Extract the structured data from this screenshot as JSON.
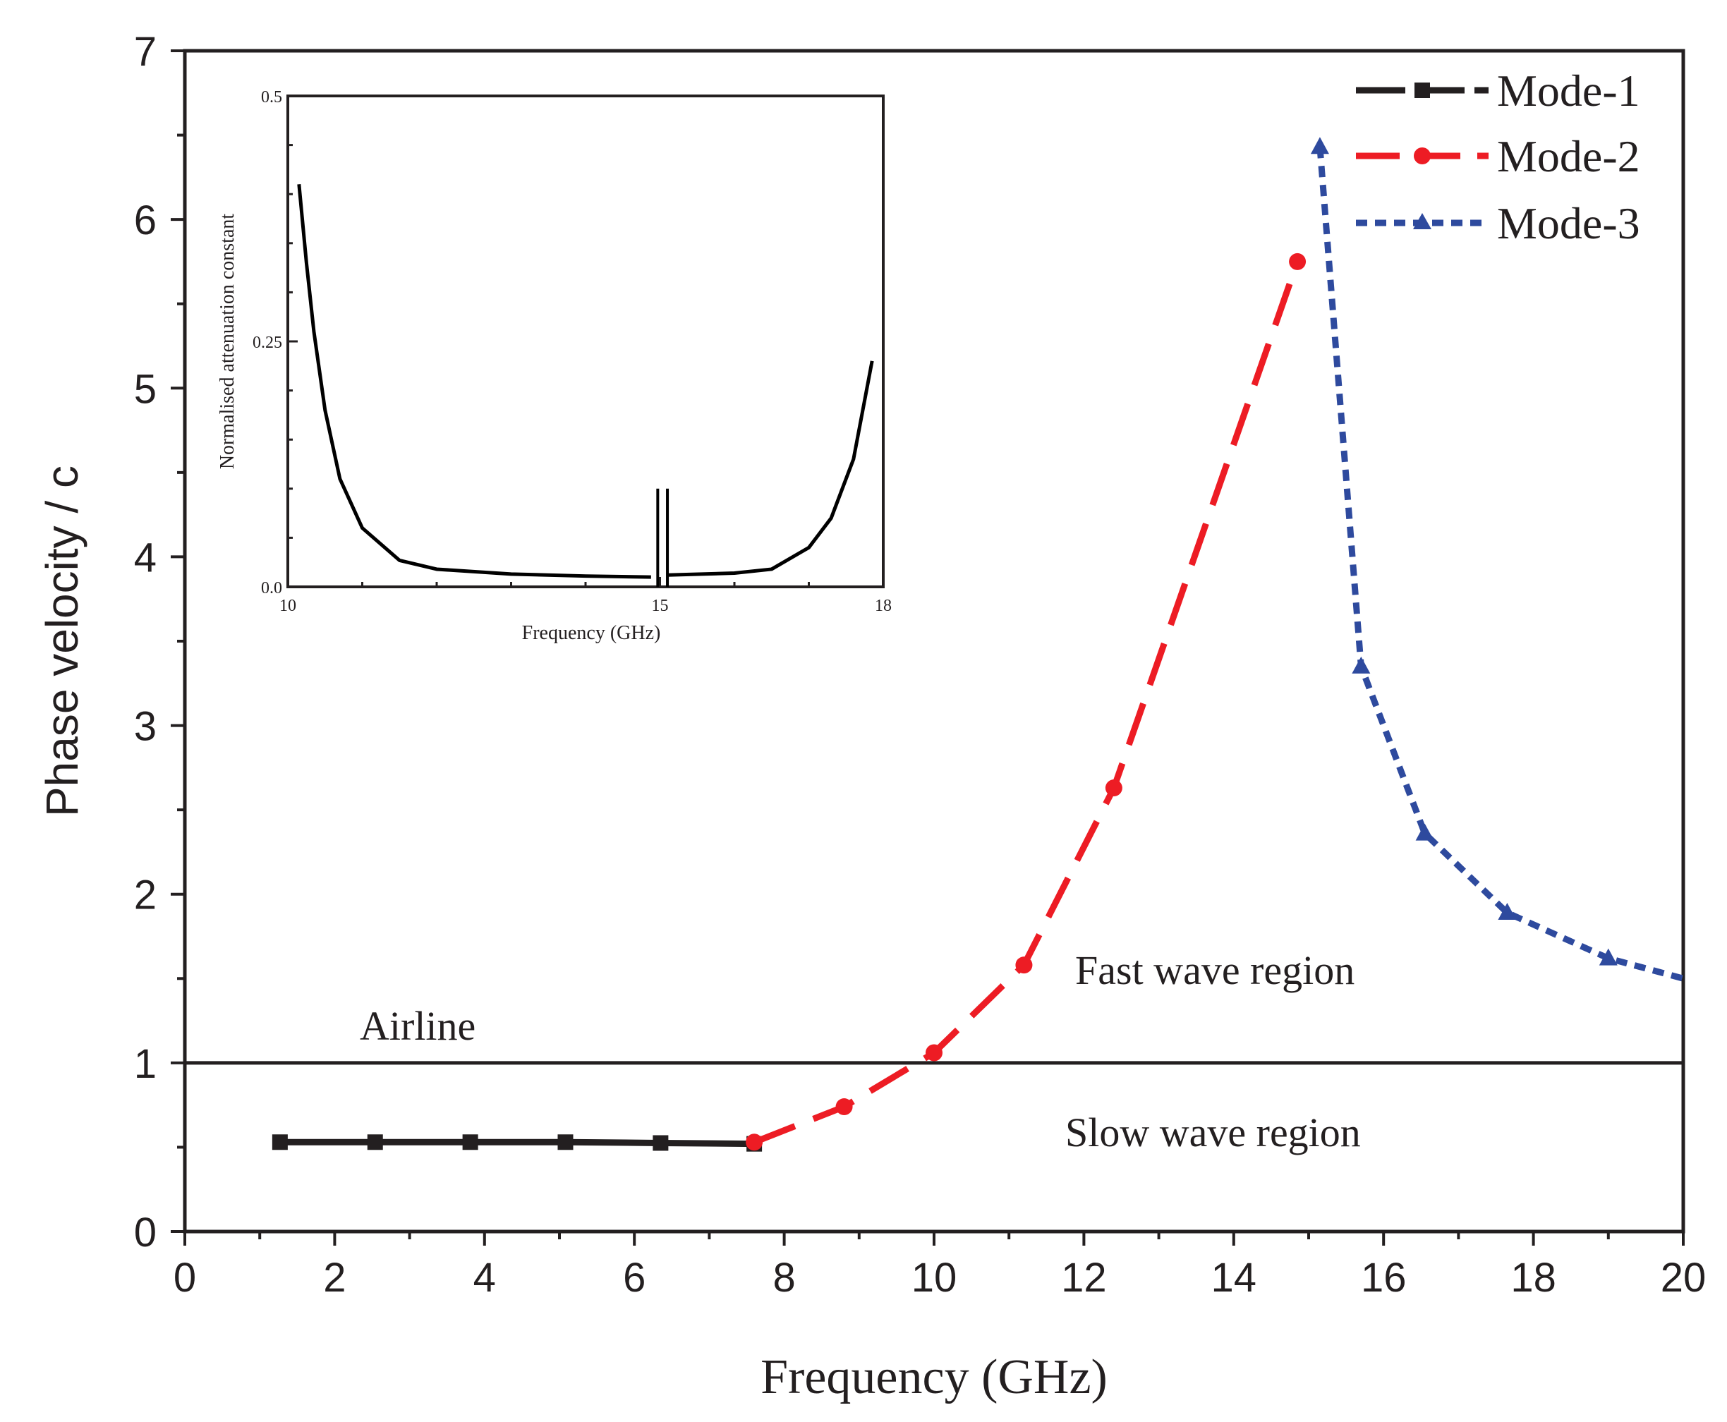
{
  "chart_data": [
    {
      "type": "line",
      "xlabel": "Frequency (GHz)",
      "ylabel": "Phase velocity / c",
      "xlim": [
        0,
        20
      ],
      "ylim": [
        0,
        7
      ],
      "xticks": [
        0,
        2,
        4,
        6,
        8,
        10,
        12,
        14,
        16,
        18,
        20
      ],
      "yticks": [
        0,
        1,
        2,
        3,
        4,
        5,
        6,
        7
      ],
      "legend_position": "top-right",
      "grid": false,
      "series": [
        {
          "name": "Mode-1",
          "color": "#231f20",
          "marker": "square",
          "dash": "solid",
          "points": [
            [
              1.27,
              0.53
            ],
            [
              2.54,
              0.53
            ],
            [
              3.81,
              0.53
            ],
            [
              5.08,
              0.53
            ],
            [
              6.35,
              0.525
            ],
            [
              7.6,
              0.52
            ]
          ]
        },
        {
          "name": "Mode-2",
          "color": "#ed1c24",
          "marker": "circle",
          "dash": "dashed",
          "points": [
            [
              7.6,
              0.53
            ],
            [
              8.8,
              0.74
            ],
            [
              10.0,
              1.06
            ],
            [
              11.2,
              1.58
            ],
            [
              12.4,
              2.63
            ],
            [
              14.85,
              5.75
            ]
          ]
        },
        {
          "name": "Mode-3",
          "color": "#2e4a9e",
          "marker": "triangle",
          "dash": "dotted",
          "points": [
            [
              15.15,
              6.43
            ],
            [
              15.7,
              3.35
            ],
            [
              16.55,
              2.36
            ],
            [
              17.65,
              1.89
            ],
            [
              19.0,
              1.62
            ],
            [
              20.0,
              1.5
            ]
          ]
        }
      ],
      "reference_line": {
        "label": "Airline",
        "y": 1.0
      },
      "annotations": [
        "Fast wave region",
        "Slow wave region"
      ]
    },
    {
      "type": "line",
      "xlabel": "Frequency (GHz)",
      "ylabel": "Normalised attenuation constant",
      "xlim": [
        10,
        18
      ],
      "ylim": [
        0,
        0.5
      ],
      "xticks": [
        10,
        15,
        18
      ],
      "yticks": [
        0.0,
        0.25,
        0.5
      ],
      "ytick_labels": [
        "0.0",
        "0.25",
        "0.5"
      ],
      "series": [
        {
          "color": "#000000",
          "segments": [
            [
              [
                10.15,
                0.41
              ],
              [
                10.25,
                0.33
              ],
              [
                10.35,
                0.26
              ],
              [
                10.5,
                0.18
              ],
              [
                10.7,
                0.11
              ],
              [
                11.0,
                0.06
              ],
              [
                11.5,
                0.027
              ],
              [
                12.0,
                0.018
              ],
              [
                13.0,
                0.013
              ],
              [
                14.0,
                0.011
              ],
              [
                14.88,
                0.01
              ]
            ],
            [
              [
                15.1,
                0.012
              ],
              [
                16.0,
                0.014
              ],
              [
                16.5,
                0.018
              ],
              [
                17.0,
                0.04
              ],
              [
                17.3,
                0.07
              ],
              [
                17.6,
                0.13
              ],
              [
                17.85,
                0.23
              ]
            ]
          ],
          "spike_x": [
            14.97,
            15.1
          ],
          "spike_top": 0.1
        }
      ]
    }
  ],
  "legend": {
    "items": [
      {
        "label": "Mode-1",
        "marker": "square",
        "color": "#231f20"
      },
      {
        "label": "Mode-2",
        "marker": "circle",
        "color": "#ed1c24"
      },
      {
        "label": "Mode-3",
        "marker": "triangle",
        "color": "#2e4a9e"
      }
    ]
  },
  "labels": {
    "airline": "Airline",
    "fast_wave": "Fast wave region",
    "slow_wave": "Slow wave region"
  }
}
